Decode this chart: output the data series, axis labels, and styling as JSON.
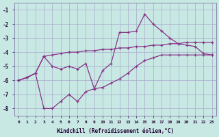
{
  "xlabel": "Windchill (Refroidissement éolien,°C)",
  "background_color": "#c8e8e4",
  "grid_color": "#aaaacc",
  "line_color": "#883388",
  "ylim": [
    -8.5,
    -0.5
  ],
  "xlim": [
    -0.5,
    23.5
  ],
  "line1": {
    "x": [
      0,
      1,
      2,
      3,
      4,
      5,
      6,
      7,
      8,
      9,
      10,
      11,
      12,
      13,
      14,
      15,
      16,
      17,
      18,
      19,
      20,
      21,
      22,
      23
    ],
    "y": [
      -6.0,
      -5.8,
      -5.5,
      -4.3,
      -4.2,
      -4.1,
      -4.0,
      -4.0,
      -3.9,
      -3.9,
      -3.8,
      -3.8,
      -3.7,
      -3.7,
      -3.6,
      -3.6,
      -3.5,
      -3.5,
      -3.4,
      -3.4,
      -3.3,
      -3.3,
      -3.3,
      -3.3
    ]
  },
  "line2": {
    "x": [
      0,
      1,
      2,
      3,
      4,
      5,
      6,
      7,
      8,
      9,
      10,
      11,
      12,
      13,
      14,
      15,
      16,
      17,
      18,
      19,
      20,
      21,
      22,
      23
    ],
    "y": [
      -6.0,
      -5.8,
      -5.5,
      -4.3,
      -5.0,
      -5.2,
      -5.0,
      -5.2,
      -4.8,
      -6.6,
      -5.3,
      -4.8,
      -2.6,
      -2.6,
      -2.5,
      -1.3,
      -2.0,
      -2.5,
      -3.0,
      -3.4,
      -3.5,
      -3.6,
      -4.1,
      -4.2
    ]
  },
  "line3": {
    "x": [
      0,
      1,
      2,
      3,
      4,
      5,
      6,
      7,
      8,
      9,
      10,
      11,
      12,
      13,
      14,
      15,
      16,
      17,
      18,
      19,
      20,
      21,
      22,
      23
    ],
    "y": [
      -6.0,
      -5.8,
      -5.5,
      -8.0,
      -8.0,
      -7.5,
      -7.0,
      -7.5,
      -6.8,
      -6.6,
      -6.5,
      -6.2,
      -5.9,
      -5.5,
      -5.0,
      -4.6,
      -4.4,
      -4.2,
      -4.2,
      -4.2,
      -4.2,
      -4.2,
      -4.2,
      -4.2
    ]
  },
  "x_ticks": [
    0,
    1,
    2,
    3,
    4,
    5,
    6,
    7,
    8,
    9,
    10,
    11,
    12,
    13,
    14,
    15,
    16,
    17,
    18,
    19,
    20,
    21,
    22,
    23
  ],
  "y_ticks": [
    -8,
    -7,
    -6,
    -5,
    -4,
    -3,
    -2,
    -1
  ]
}
